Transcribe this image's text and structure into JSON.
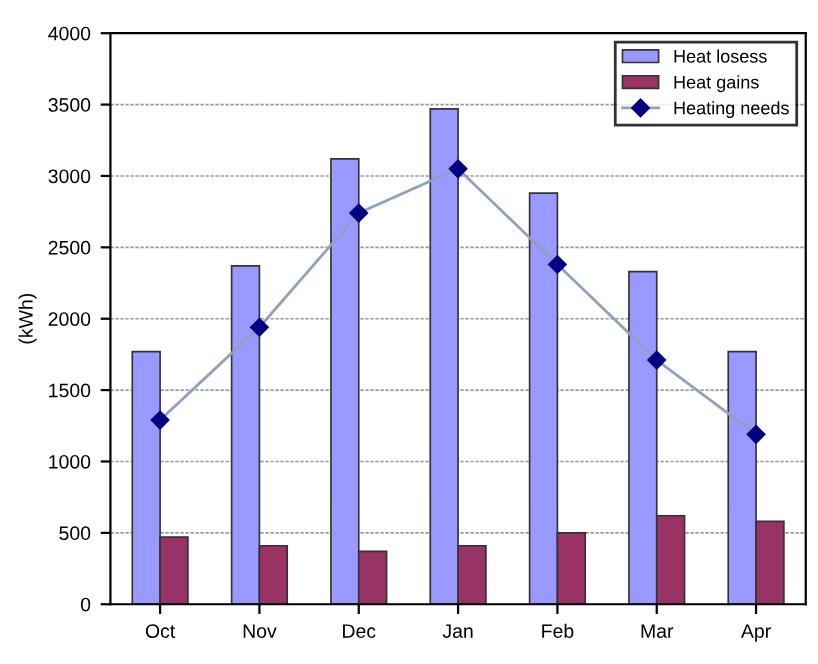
{
  "chart_data": {
    "type": "bar",
    "ylabel": "(kWh)",
    "categories": [
      "Oct",
      "Nov",
      "Dec",
      "Jan",
      "Feb",
      "Mar",
      "Apr"
    ],
    "series": [
      {
        "name": "Heat losess",
        "color": "#9999ff",
        "values": [
          1770,
          2370,
          3120,
          3470,
          2880,
          2330,
          1770
        ]
      },
      {
        "name": "Heat gains",
        "color": "#993366",
        "values": [
          470,
          410,
          370,
          410,
          500,
          620,
          580
        ]
      },
      {
        "name": "Heating needs",
        "type": "line",
        "color": "#000080",
        "marker": "diamond",
        "values": [
          1290,
          1940,
          2740,
          3050,
          2380,
          1710,
          1190
        ]
      }
    ],
    "ylim": [
      0,
      4000
    ],
    "yticks": [
      0,
      500,
      1000,
      1500,
      2000,
      2500,
      3000,
      3500,
      4000
    ],
    "grid": "y",
    "legend": "top right"
  }
}
